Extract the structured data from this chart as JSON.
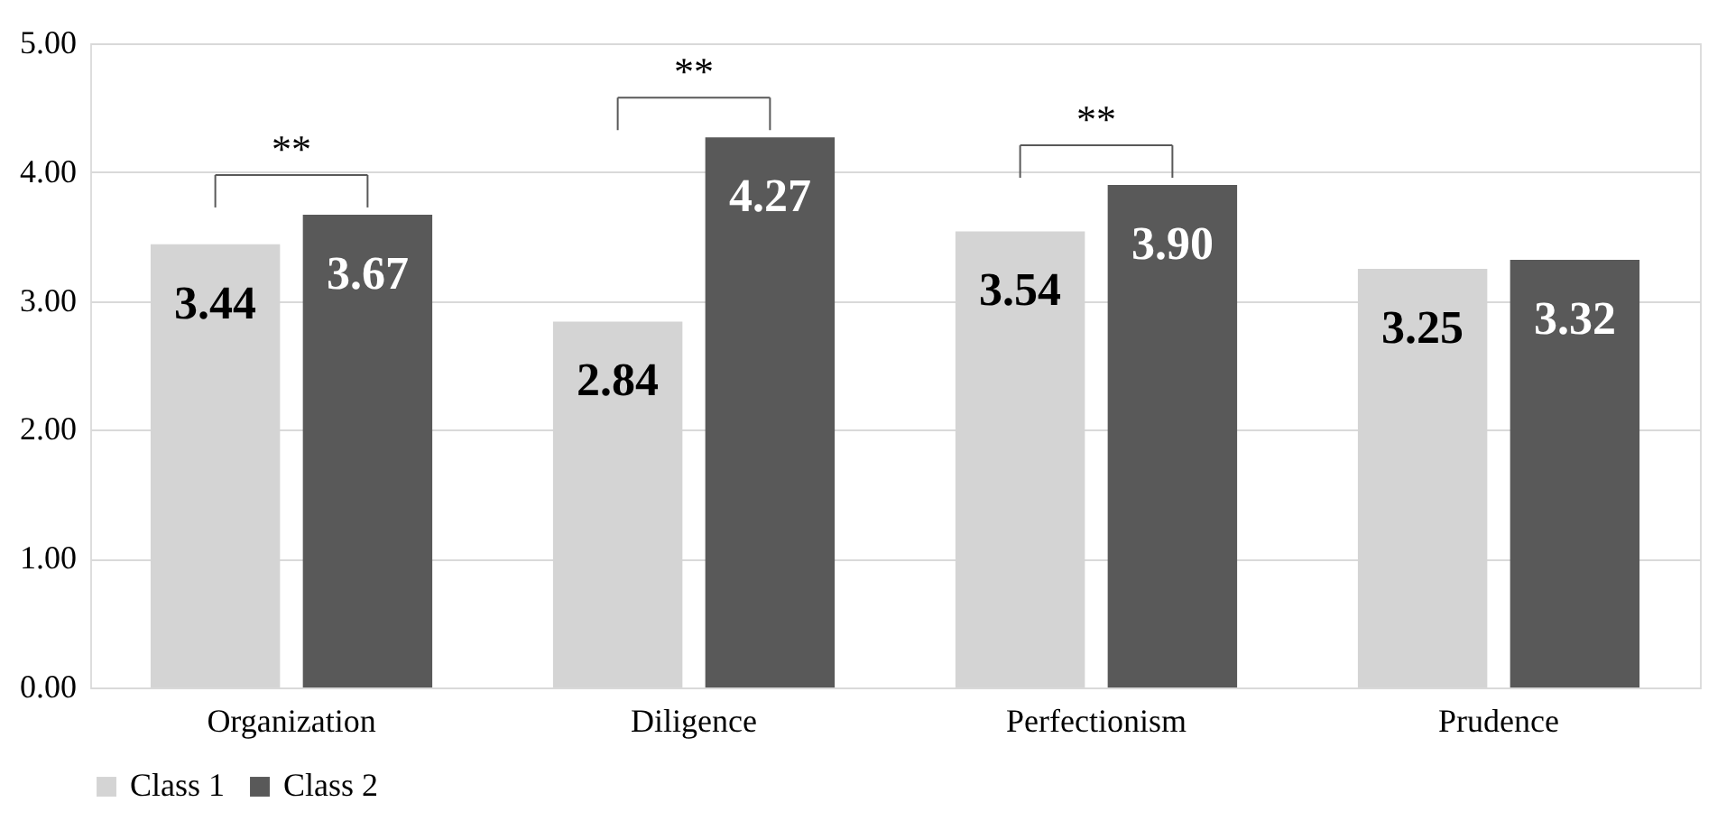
{
  "chart_data": {
    "type": "bar",
    "categories": [
      "Organization",
      "Diligence",
      "Perfectionism",
      "Prudence"
    ],
    "series": [
      {
        "name": "Class 1",
        "color": "#d4d4d4",
        "values": [
          3.44,
          2.84,
          3.54,
          3.25
        ],
        "value_labels": [
          "3.44",
          "2.84",
          "3.54",
          "3.25"
        ]
      },
      {
        "name": "Class 2",
        "color": "#595959",
        "values": [
          3.67,
          4.27,
          3.9,
          3.32
        ],
        "value_labels": [
          "3.67",
          "4.27",
          "3.90",
          "3.32"
        ]
      }
    ],
    "ylim": [
      0,
      5
    ],
    "yticks": [
      {
        "value": 0,
        "label": "0.00"
      },
      {
        "value": 1,
        "label": "1.00"
      },
      {
        "value": 2,
        "label": "2.00"
      },
      {
        "value": 3,
        "label": "3.00"
      },
      {
        "value": 4,
        "label": "4.00"
      },
      {
        "value": 5,
        "label": "5.00"
      }
    ],
    "grid": "y",
    "legend": "bottom",
    "annotations": [
      "**",
      "**",
      "**"
    ]
  }
}
